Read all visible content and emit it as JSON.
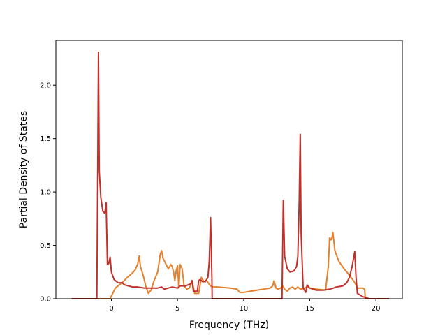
{
  "chart_data": {
    "type": "line",
    "title": "",
    "xlabel": "Frequency (THz)",
    "ylabel": "Partial Density of States",
    "xlim": [
      -4.2,
      22.0
    ],
    "ylim": [
      0.0,
      2.42
    ],
    "xticks": [
      0,
      5,
      10,
      15,
      20
    ],
    "yticks": [
      0.0,
      0.5,
      1.0,
      1.5,
      2.0
    ],
    "xtick_labels": [
      "0",
      "5",
      "10",
      "15",
      "20"
    ],
    "ytick_labels": [
      "0.0",
      "0.5",
      "1.0",
      "1.5",
      "2.0"
    ],
    "grid": false,
    "legend": false,
    "series": [
      {
        "color": "#e6802a",
        "points": [
          [
            -3.0,
            0.0
          ],
          [
            -0.1,
            0.0
          ],
          [
            0.1,
            0.05
          ],
          [
            0.3,
            0.1
          ],
          [
            0.6,
            0.13
          ],
          [
            0.9,
            0.16
          ],
          [
            1.2,
            0.2
          ],
          [
            1.5,
            0.23
          ],
          [
            1.8,
            0.27
          ],
          [
            2.0,
            0.33
          ],
          [
            2.1,
            0.4
          ],
          [
            2.2,
            0.3
          ],
          [
            2.4,
            0.22
          ],
          [
            2.6,
            0.12
          ],
          [
            2.8,
            0.05
          ],
          [
            3.0,
            0.08
          ],
          [
            3.2,
            0.16
          ],
          [
            3.5,
            0.25
          ],
          [
            3.7,
            0.42
          ],
          [
            3.8,
            0.45
          ],
          [
            3.9,
            0.38
          ],
          [
            4.1,
            0.33
          ],
          [
            4.3,
            0.28
          ],
          [
            4.5,
            0.32
          ],
          [
            4.6,
            0.3
          ],
          [
            4.7,
            0.25
          ],
          [
            4.8,
            0.17
          ],
          [
            4.9,
            0.26
          ],
          [
            5.0,
            0.31
          ],
          [
            5.1,
            0.1
          ],
          [
            5.2,
            0.32
          ],
          [
            5.35,
            0.28
          ],
          [
            5.5,
            0.12
          ],
          [
            5.7,
            0.09
          ],
          [
            5.9,
            0.1
          ],
          [
            6.1,
            0.17
          ],
          [
            6.3,
            0.05
          ],
          [
            6.6,
            0.05
          ],
          [
            6.8,
            0.2
          ],
          [
            7.0,
            0.16
          ],
          [
            7.2,
            0.17
          ],
          [
            7.5,
            0.12
          ],
          [
            7.7,
            0.11
          ],
          [
            8.0,
            0.11
          ],
          [
            9.0,
            0.1
          ],
          [
            9.5,
            0.09
          ],
          [
            9.7,
            0.06
          ],
          [
            10.0,
            0.06
          ],
          [
            11.0,
            0.08
          ],
          [
            12.0,
            0.1
          ],
          [
            12.2,
            0.12
          ],
          [
            12.3,
            0.17
          ],
          [
            12.45,
            0.1
          ],
          [
            12.6,
            0.09
          ],
          [
            12.8,
            0.1
          ],
          [
            12.95,
            0.12
          ],
          [
            13.1,
            0.09
          ],
          [
            13.3,
            0.07
          ],
          [
            13.5,
            0.1
          ],
          [
            13.7,
            0.11
          ],
          [
            13.9,
            0.09
          ],
          [
            14.1,
            0.11
          ],
          [
            14.3,
            0.09
          ],
          [
            14.6,
            0.1
          ],
          [
            14.8,
            0.11
          ],
          [
            15.0,
            0.1
          ],
          [
            15.5,
            0.09
          ],
          [
            16.2,
            0.08
          ],
          [
            16.4,
            0.3
          ],
          [
            16.5,
            0.57
          ],
          [
            16.6,
            0.55
          ],
          [
            16.7,
            0.58
          ],
          [
            16.75,
            0.62
          ],
          [
            16.9,
            0.45
          ],
          [
            17.2,
            0.35
          ],
          [
            17.6,
            0.28
          ],
          [
            18.0,
            0.22
          ],
          [
            18.3,
            0.17
          ],
          [
            18.5,
            0.13
          ],
          [
            18.6,
            0.1
          ],
          [
            19.0,
            0.1
          ],
          [
            19.15,
            0.09
          ],
          [
            19.2,
            0.0
          ],
          [
            21.0,
            0.0
          ]
        ]
      },
      {
        "color": "#c1302a",
        "points": [
          [
            -3.0,
            0.0
          ],
          [
            -1.1,
            0.0
          ],
          [
            -0.98,
            2.31
          ],
          [
            -0.92,
            1.2
          ],
          [
            -0.8,
            0.95
          ],
          [
            -0.65,
            0.82
          ],
          [
            -0.5,
            0.8
          ],
          [
            -0.4,
            0.9
          ],
          [
            -0.3,
            0.32
          ],
          [
            -0.2,
            0.33
          ],
          [
            -0.1,
            0.39
          ],
          [
            0.0,
            0.25
          ],
          [
            0.2,
            0.18
          ],
          [
            0.5,
            0.15
          ],
          [
            0.8,
            0.15
          ],
          [
            1.0,
            0.13
          ],
          [
            1.3,
            0.12
          ],
          [
            1.6,
            0.11
          ],
          [
            2.0,
            0.11
          ],
          [
            2.5,
            0.1
          ],
          [
            3.0,
            0.1
          ],
          [
            3.5,
            0.1
          ],
          [
            3.8,
            0.11
          ],
          [
            4.0,
            0.09
          ],
          [
            4.3,
            0.1
          ],
          [
            4.6,
            0.11
          ],
          [
            5.0,
            0.1
          ],
          [
            5.2,
            0.12
          ],
          [
            5.6,
            0.12
          ],
          [
            6.0,
            0.14
          ],
          [
            6.1,
            0.17
          ],
          [
            6.2,
            0.07
          ],
          [
            6.5,
            0.07
          ],
          [
            6.6,
            0.17
          ],
          [
            6.7,
            0.18
          ],
          [
            6.9,
            0.16
          ],
          [
            7.1,
            0.16
          ],
          [
            7.3,
            0.2
          ],
          [
            7.4,
            0.35
          ],
          [
            7.5,
            0.76
          ],
          [
            7.6,
            0.2
          ],
          [
            7.62,
            0.0
          ],
          [
            12.9,
            0.0
          ],
          [
            13.0,
            0.92
          ],
          [
            13.1,
            0.4
          ],
          [
            13.3,
            0.28
          ],
          [
            13.5,
            0.25
          ],
          [
            13.8,
            0.26
          ],
          [
            14.0,
            0.3
          ],
          [
            14.1,
            0.4
          ],
          [
            14.2,
            0.9
          ],
          [
            14.28,
            1.54
          ],
          [
            14.35,
            0.6
          ],
          [
            14.5,
            0.1
          ],
          [
            14.7,
            0.06
          ],
          [
            14.8,
            0.13
          ],
          [
            15.0,
            0.1
          ],
          [
            15.5,
            0.08
          ],
          [
            16.0,
            0.08
          ],
          [
            16.5,
            0.09
          ],
          [
            16.8,
            0.1
          ],
          [
            17.0,
            0.11
          ],
          [
            17.5,
            0.12
          ],
          [
            17.8,
            0.15
          ],
          [
            18.0,
            0.2
          ],
          [
            18.2,
            0.3
          ],
          [
            18.4,
            0.44
          ],
          [
            18.5,
            0.2
          ],
          [
            18.6,
            0.05
          ],
          [
            19.0,
            0.02
          ],
          [
            19.5,
            0.0
          ],
          [
            21.0,
            0.0
          ]
        ]
      }
    ]
  }
}
